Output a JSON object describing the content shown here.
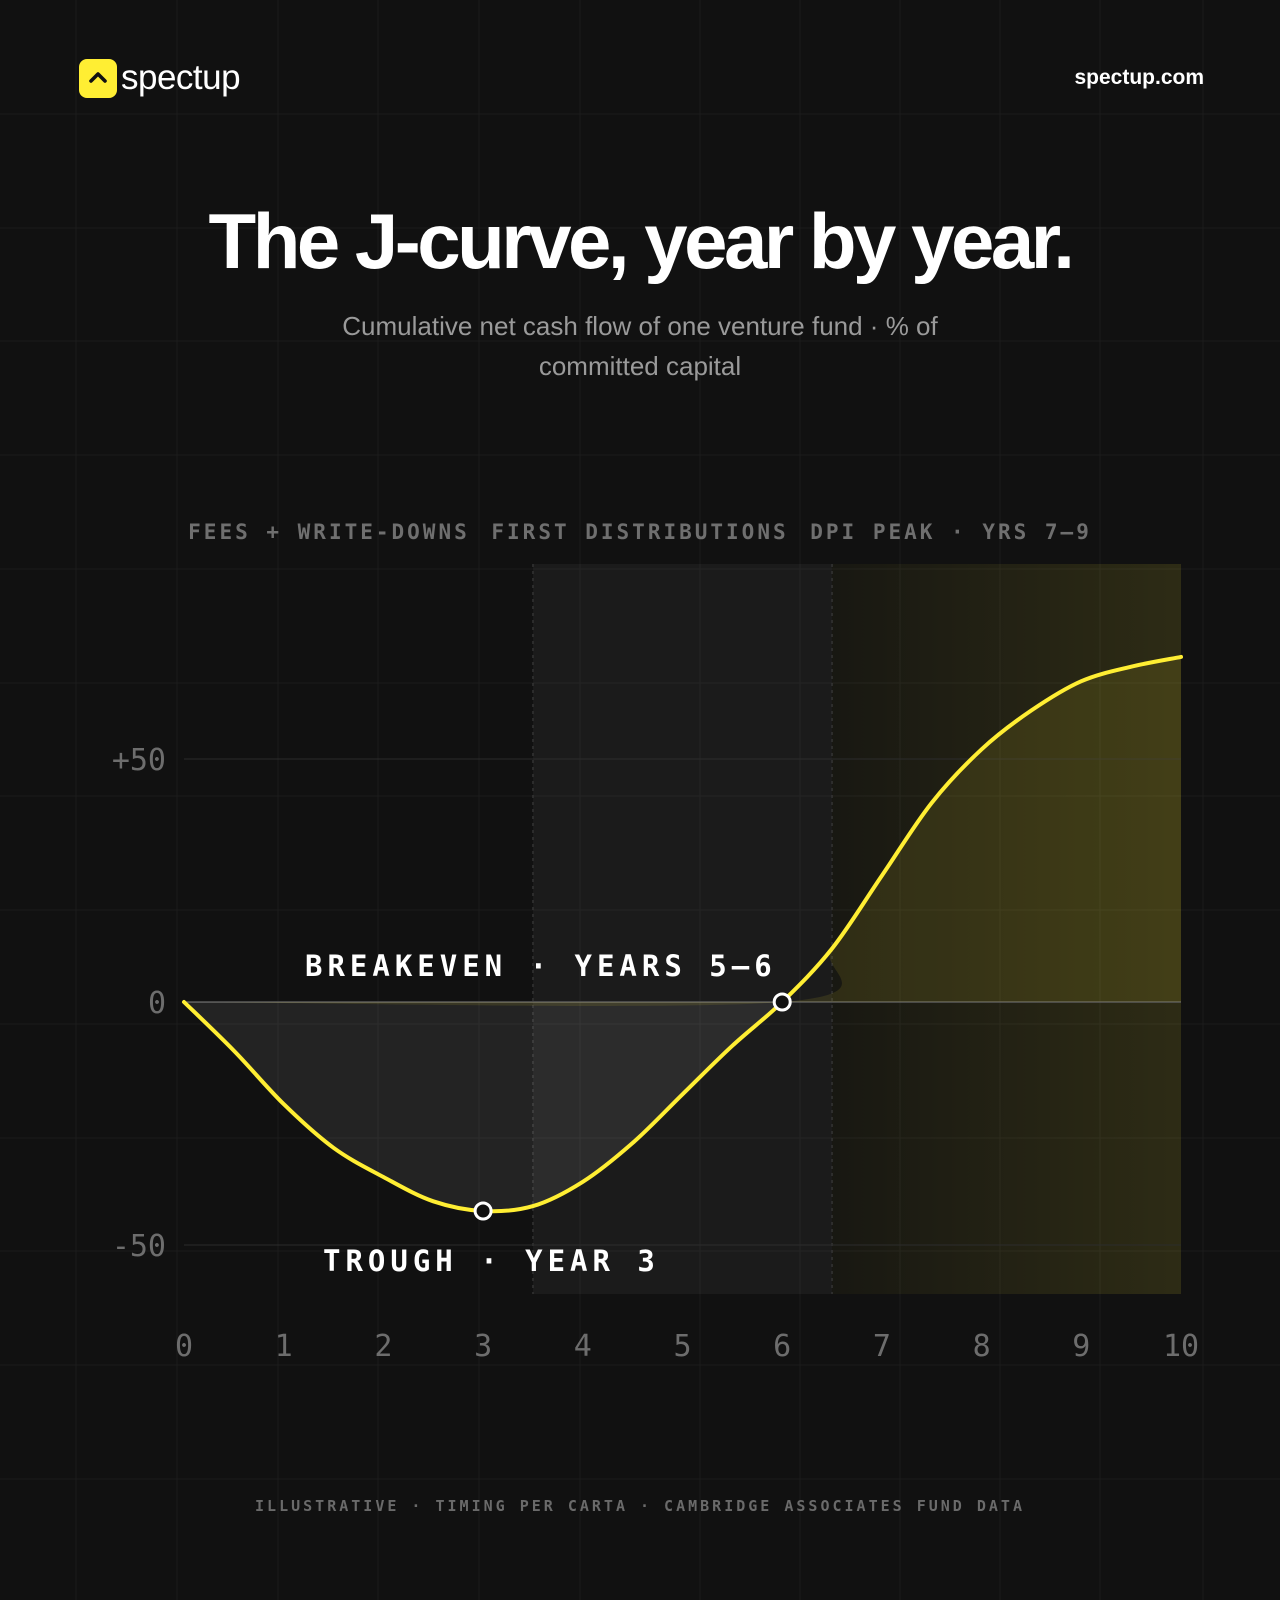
{
  "header": {
    "logo_text": "spectup",
    "site": "spectup.com"
  },
  "title": "The J-curve, year by year.",
  "subtitle": "Cumulative net cash flow of one venture fund · % of committed capital",
  "phases": [
    {
      "label": "FEES + WRITE-DOWNS",
      "x_start": 0,
      "x_end": 3.5
    },
    {
      "label": "FIRST DISTRIBUTIONS",
      "x_start": 3.5,
      "x_end": 6.5
    },
    {
      "label": "DPI PEAK · YRS 7–9",
      "x_start": 6.5,
      "x_end": 10
    }
  ],
  "annotations": {
    "breakeven": "BREAKEVEN · YEARS 5–6",
    "trough": "TROUGH · YEAR 3"
  },
  "footer": "ILLUSTRATIVE · TIMING PER CARTA · CAMBRIDGE ASSOCIATES FUND DATA",
  "colors": {
    "accent": "#ffee33",
    "background": "#111111"
  },
  "chart_data": {
    "type": "line",
    "title": "The J-curve, year by year.",
    "xlabel": "",
    "ylabel": "",
    "xlim": [
      0,
      10
    ],
    "ylim": [
      -60,
      90
    ],
    "x_ticks": [
      "0",
      "1",
      "2",
      "3",
      "4",
      "5",
      "6",
      "7",
      "8",
      "9",
      "10"
    ],
    "y_ticks": [
      {
        "value": 50,
        "label": "+50"
      },
      {
        "value": 0,
        "label": "0"
      },
      {
        "value": -50,
        "label": "-50"
      }
    ],
    "grid": true,
    "series": [
      {
        "x": [
          0,
          0.5,
          1,
          1.5,
          2,
          2.5,
          3,
          3.5,
          4,
          4.5,
          5,
          5.5,
          6,
          6.5,
          7,
          7.5,
          8,
          8.5,
          9,
          9.5,
          10
        ],
        "y": [
          0,
          -10,
          -21,
          -30,
          -36,
          -41,
          -43,
          -42,
          -37,
          -29,
          -19,
          -9,
          0,
          11,
          26,
          41,
          52,
          60,
          66,
          69,
          71
        ]
      }
    ],
    "markers": [
      {
        "x": 3,
        "y": -43
      },
      {
        "x": 6,
        "y": 0
      }
    ]
  }
}
